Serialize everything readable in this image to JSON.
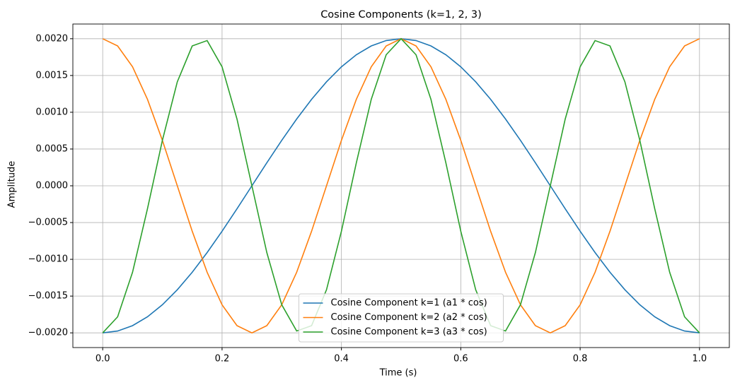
{
  "chart_data": {
    "type": "line",
    "title": "Cosine Components (k=1, 2, 3)",
    "x_label": "Time (s)",
    "y_label": "Amplitude",
    "x": [
      0,
      0.025,
      0.05,
      0.075,
      0.1,
      0.125,
      0.15,
      0.175,
      0.2,
      0.225,
      0.25,
      0.275,
      0.3,
      0.325,
      0.35,
      0.375,
      0.4,
      0.425,
      0.45,
      0.475,
      0.5,
      0.525,
      0.55,
      0.575,
      0.6,
      0.625,
      0.65,
      0.675,
      0.7,
      0.725,
      0.75,
      0.775,
      0.8,
      0.825,
      0.85,
      0.875,
      0.9,
      0.925,
      0.95,
      0.975,
      1
    ],
    "series": [
      {
        "name": "Cosine Component k=1 (a1 * cos)",
        "color": "#1f77b4",
        "values": [
          -0.002,
          -0.001975,
          -0.001902,
          -0.001782,
          -0.001618,
          -0.001414,
          -0.001176,
          -0.000908,
          -0.000618,
          -0.000313,
          0,
          0.000313,
          0.000618,
          0.000908,
          0.001176,
          0.001414,
          0.001618,
          0.001782,
          0.001902,
          0.001975,
          0.002,
          0.001975,
          0.001902,
          0.001782,
          0.001618,
          0.001414,
          0.001176,
          0.000908,
          0.000618,
          0.000313,
          0,
          -0.000313,
          -0.000618,
          -0.000908,
          -0.001176,
          -0.001414,
          -0.001618,
          -0.001782,
          -0.001902,
          -0.001975,
          -0.002
        ]
      },
      {
        "name": "Cosine Component k=2 (a2 * cos)",
        "color": "#ff7f0e",
        "values": [
          0.002,
          0.001902,
          0.001618,
          0.001176,
          0.000618,
          0,
          -0.000618,
          -0.001176,
          -0.001618,
          -0.001902,
          -0.002,
          -0.001902,
          -0.001618,
          -0.001176,
          -0.000618,
          0,
          0.000618,
          0.001176,
          0.001618,
          0.001902,
          0.002,
          0.001902,
          0.001618,
          0.001176,
          0.000618,
          0,
          -0.000618,
          -0.001176,
          -0.001618,
          -0.001902,
          -0.002,
          -0.001902,
          -0.001618,
          -0.001176,
          -0.000618,
          0,
          0.000618,
          0.001176,
          0.001618,
          0.001902,
          0.002
        ]
      },
      {
        "name": "Cosine Component k=3 (a3 * cos)",
        "color": "#2ca02c",
        "values": [
          -0.002,
          -0.001782,
          -0.001176,
          -0.000313,
          0.000618,
          0.001414,
          0.001902,
          0.001975,
          0.001618,
          0.000908,
          0,
          -0.000908,
          -0.001618,
          -0.001975,
          -0.001902,
          -0.001414,
          -0.000618,
          0.000313,
          0.001176,
          0.001782,
          0.002,
          0.001782,
          0.001176,
          0.000313,
          -0.000618,
          -0.001414,
          -0.001902,
          -0.001975,
          -0.001618,
          -0.000908,
          0,
          0.000908,
          0.001618,
          0.001975,
          0.001902,
          0.001414,
          0.000618,
          -0.000313,
          -0.001176,
          -0.001782,
          -0.002
        ]
      }
    ],
    "xlim": [
      -0.05,
      1.05
    ],
    "xticks": [
      {
        "value": 0,
        "label": "0.0"
      },
      0.2,
      0.4,
      0.6,
      0.8,
      {
        "value": 1,
        "label": "1.0"
      }
    ],
    "ylim": [
      -0.0022,
      0.0022
    ],
    "yticks": [
      {
        "value": -0.002,
        "label": "−0.0020"
      },
      {
        "value": -0.0015,
        "label": "−0.0015"
      },
      {
        "value": -0.001,
        "label": "−0.0010"
      },
      {
        "value": -0.0005,
        "label": "−0.0005"
      },
      {
        "value": 0,
        "label": "0.0000"
      },
      {
        "value": 0.0005,
        "label": "0.0005"
      },
      {
        "value": 0.001,
        "label": "0.0010"
      },
      {
        "value": 0.0015,
        "label": "0.0015"
      },
      {
        "value": 0.002,
        "label": "0.0020"
      }
    ],
    "grid": true,
    "legend": "lower center"
  }
}
